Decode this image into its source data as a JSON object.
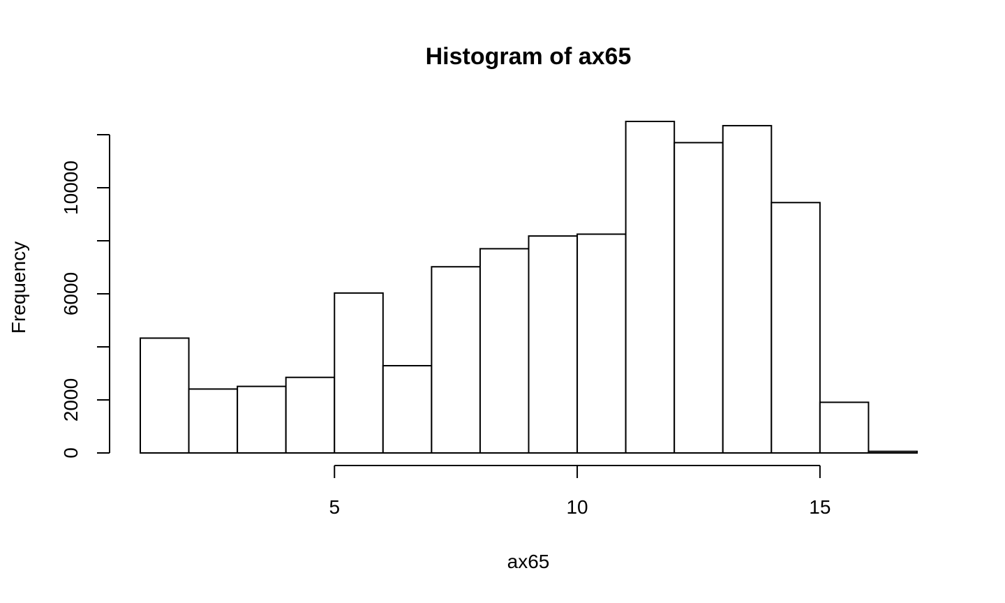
{
  "chart_data": {
    "type": "bar",
    "title": "Histogram of ax65",
    "xlabel": "ax65",
    "ylabel": "Frequency",
    "bin_edges": [
      1,
      2,
      3,
      4,
      5,
      6,
      7,
      8,
      9,
      10,
      11,
      12,
      13,
      14,
      15,
      16,
      17
    ],
    "values": [
      4330,
      2410,
      2510,
      2850,
      6030,
      3290,
      7020,
      7700,
      8180,
      8250,
      12500,
      11700,
      12340,
      9440,
      1910,
      60
    ],
    "xlim": [
      1,
      17
    ],
    "ylim": [
      0,
      12500
    ],
    "x_ticks": [
      5,
      10,
      15
    ],
    "x_tick_labels": [
      "5",
      "10",
      "15"
    ],
    "y_ticks": [
      0,
      2000,
      4000,
      6000,
      8000,
      10000,
      12000
    ],
    "y_tick_labels": [
      "0",
      "2000",
      "",
      "6000",
      "",
      "10000",
      ""
    ],
    "grid": false,
    "legend": "none",
    "colors": {
      "bar_fill": "#ffffff",
      "bar_stroke": "#000000",
      "text": "#000000"
    }
  }
}
